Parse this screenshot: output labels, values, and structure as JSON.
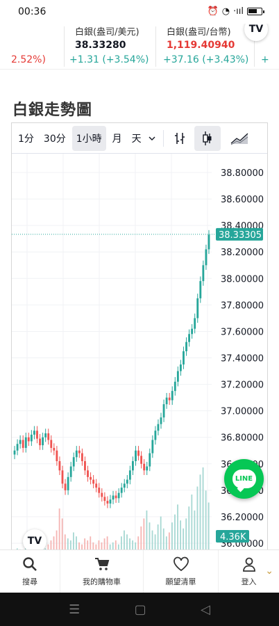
{
  "status": {
    "time": "00:36",
    "signal_text": "⋅ııl"
  },
  "tickers": [
    {
      "name": "",
      "price": "",
      "change": "2.52%)",
      "change_color": "red"
    },
    {
      "name": "白銀(盎司/美元)",
      "price": "38.33280",
      "price_color": "dark",
      "change": "+1.31 (+3.54%)",
      "change_color": "green"
    },
    {
      "name": "白銀(盎司/台幣)",
      "price": "1,119.40940",
      "price_color": "red",
      "change": "+37.16 (+3.43%)",
      "change_color": "green"
    },
    {
      "name": "",
      "price": "",
      "change": "+",
      "change_color": "green"
    }
  ],
  "tv_badge": "TV",
  "section_title": "白銀走勢圖",
  "toolbar": {
    "intervals": [
      "1分",
      "30分",
      "1小時",
      "月",
      "天"
    ],
    "active_interval": "1小時",
    "dropdown_icon": "chevron-down-icon",
    "tools": [
      "compare-icon",
      "candlestick-icon",
      "area-chart-icon"
    ],
    "active_tool": "candlestick-icon"
  },
  "chart_data": {
    "type": "candlestick",
    "title": "",
    "y_axis_labels": [
      "38.80000",
      "38.60000",
      "38.40000",
      "38.20000",
      "38.00000",
      "37.80000",
      "37.60000",
      "37.40000",
      "37.20000",
      "37.00000",
      "36.80000",
      "36.60000",
      "36.40000",
      "36.20000",
      "36.00000"
    ],
    "ylim": [
      36.0,
      38.9
    ],
    "last_price_label": "38.33305",
    "last_price": 38.33305,
    "volume_label": "4.36K",
    "close_series": [
      36.7,
      36.75,
      36.78,
      36.72,
      36.8,
      36.77,
      36.82,
      36.85,
      36.79,
      36.74,
      36.8,
      36.83,
      36.78,
      36.72,
      36.7,
      36.62,
      36.55,
      36.45,
      36.4,
      36.5,
      36.58,
      36.65,
      36.7,
      36.68,
      36.62,
      36.55,
      36.5,
      36.48,
      36.45,
      36.42,
      36.38,
      36.35,
      36.32,
      36.3,
      36.33,
      36.36,
      36.34,
      36.38,
      36.42,
      36.45,
      36.48,
      36.55,
      36.62,
      36.7,
      36.66,
      36.6,
      36.55,
      36.58,
      36.68,
      36.78,
      36.85,
      36.9,
      36.95,
      37.05,
      37.1,
      37.08,
      37.15,
      37.22,
      37.3,
      37.35,
      37.45,
      37.52,
      37.58,
      37.62,
      37.7,
      37.85,
      37.98,
      38.1,
      38.22,
      38.33
    ],
    "volume_series": [
      0.2,
      0.3,
      0.25,
      0.2,
      0.4,
      0.3,
      0.2,
      0.35,
      0.5,
      0.6,
      0.4,
      0.3,
      0.5,
      0.7,
      0.9,
      1.2,
      2.3,
      1.8,
      1.0,
      0.8,
      0.7,
      1.1,
      0.9,
      0.6,
      0.5,
      0.8,
      0.7,
      0.9,
      0.6,
      0.5,
      0.7,
      0.6,
      0.8,
      0.9,
      0.5,
      0.6,
      0.7,
      0.5,
      0.9,
      1.2,
      1.0,
      0.8,
      0.7,
      0.6,
      0.9,
      1.4,
      1.8,
      2.2,
      1.6,
      1.2,
      1.0,
      1.5,
      1.9,
      1.3,
      0.9,
      1.1,
      1.6,
      2.0,
      2.5,
      1.7,
      1.3,
      1.8,
      2.4,
      3.0,
      2.2,
      3.4,
      4.0,
      4.36,
      3.2,
      2.6
    ],
    "up_color": "#26a69a",
    "down_color": "#ef5350"
  },
  "fab": {
    "label": "LINE"
  },
  "bottom_nav": [
    {
      "label": "搜尋",
      "icon": "search-icon"
    },
    {
      "label": "我的購物車",
      "icon": "cart-icon"
    },
    {
      "label": "願望清單",
      "icon": "heart-icon"
    },
    {
      "label": "登入",
      "icon": "user-icon"
    }
  ],
  "system_nav": {
    "menu": "☰",
    "home": "▢",
    "back": "◁"
  }
}
